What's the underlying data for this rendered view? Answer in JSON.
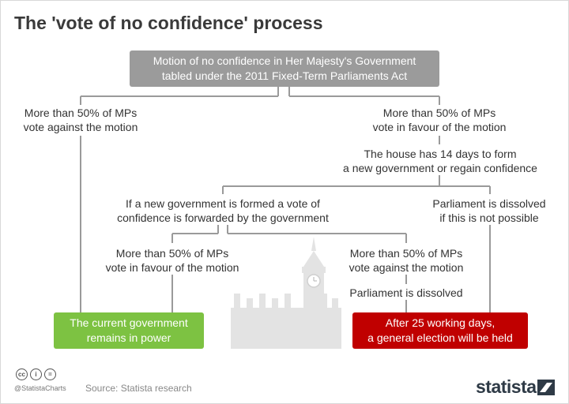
{
  "title": "The 'vote of no confidence' process",
  "nodes": {
    "motion_line1": "Motion of no confidence in Her Majesty's Government",
    "motion_line2": "tabled under the 2011 Fixed-Term Parliaments Act",
    "against_line1": "More than 50% of MPs",
    "against_line2": "vote against the motion",
    "favour_line1": "More than 50% of MPs",
    "favour_line2": "vote in favour of the motion",
    "fourteen_line1": "The house has 14 days to form",
    "fourteen_line2": "a new government or regain confidence",
    "newgov_line1": "If a new government is formed a vote of",
    "newgov_line2": "confidence is forwarded by the government",
    "dissolved_np_line1": "Parliament is dissolved",
    "dissolved_np_line2": "if this is not possible",
    "second_favour_line1": "More than 50% of MPs",
    "second_favour_line2": "vote in favour of the motion",
    "second_against_line1": "More than 50% of MPs",
    "second_against_line2": "vote against the motion",
    "dissolved": "Parliament is dissolved",
    "remains_line1": "The current government",
    "remains_line2": "remains in power",
    "election_line1": "After 25 working days,",
    "election_line2": "a general election will be held"
  },
  "colors": {
    "gray_box": "#9b9b9b",
    "green_box": "#7dc242",
    "red_box": "#c00000",
    "connector": "#9a9a9a"
  },
  "footer": {
    "license_icons": [
      "cc",
      "i",
      "="
    ],
    "handle": "@StatistaCharts",
    "source": "Source: Statista research",
    "brand": "statista"
  }
}
